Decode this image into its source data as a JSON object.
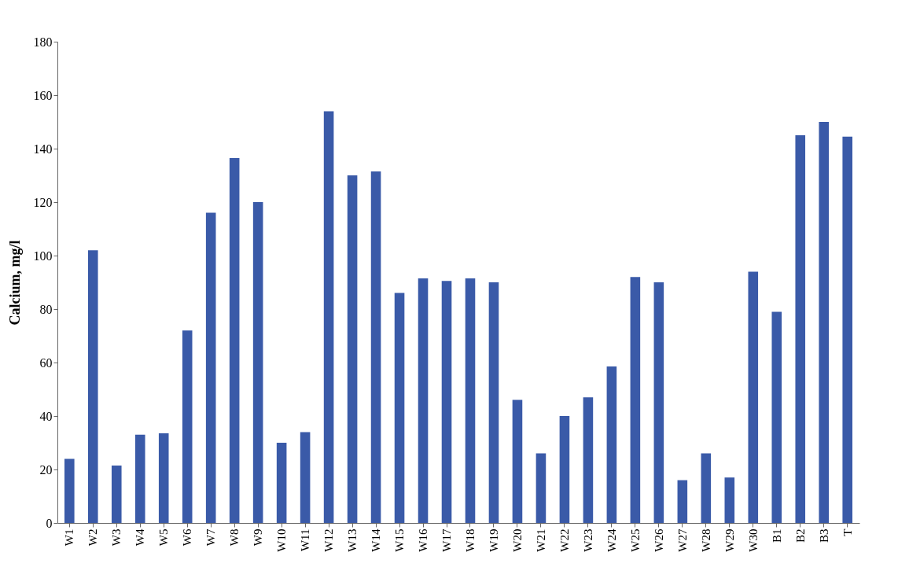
{
  "chart_data": {
    "type": "bar",
    "ylabel": "Calcium, mg/l",
    "categories": [
      "W1",
      "W2",
      "W3",
      "W4",
      "W5",
      "W6",
      "W7",
      "W8",
      "W9",
      "W10",
      "W11",
      "W12",
      "W13",
      "W14",
      "W15",
      "W16",
      "W17",
      "W18",
      "W19",
      "W20",
      "W21",
      "W22",
      "W23",
      "W24",
      "W25",
      "W26",
      "W27",
      "W28",
      "W29",
      "W30",
      "B1",
      "B2",
      "B3",
      "T"
    ],
    "values": [
      24,
      102,
      21.5,
      33,
      33.5,
      72,
      116,
      136.5,
      120,
      30,
      34,
      154,
      130,
      131.5,
      86,
      91.5,
      90.5,
      91.5,
      90,
      46,
      26,
      40,
      47,
      58.5,
      92,
      90,
      16,
      26,
      17,
      94,
      79,
      145,
      150,
      144.5
    ],
    "color": "#3a5aa8",
    "ylim": [
      0,
      180
    ],
    "yticks": [
      0,
      20,
      40,
      60,
      80,
      100,
      120,
      140,
      160,
      180
    ],
    "grid": false
  }
}
